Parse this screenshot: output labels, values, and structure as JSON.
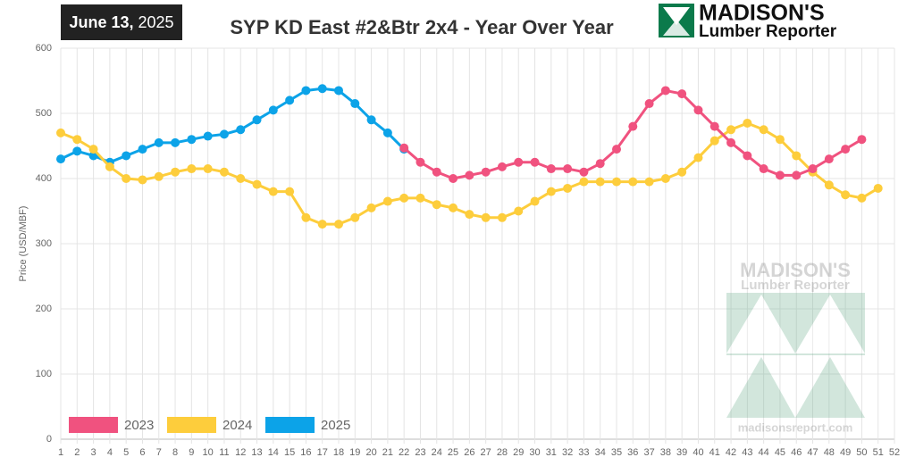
{
  "header": {
    "date_bold": "June 13,",
    "date_year": "2025"
  },
  "logo": {
    "name": "MADISON'S",
    "tagline": "Lumber Reporter"
  },
  "watermark": {
    "name": "MADISON'S",
    "tagline": "Lumber Reporter",
    "url": "madisonsreport.com"
  },
  "chart_data": {
    "type": "line",
    "title": "SYP KD East #2&Btr 2x4 - Year Over Year",
    "y_label": "Price  (USD/MBF)",
    "x": [
      1,
      2,
      3,
      4,
      5,
      6,
      7,
      8,
      9,
      10,
      11,
      12,
      13,
      14,
      15,
      16,
      17,
      18,
      19,
      20,
      21,
      22,
      23,
      24,
      25,
      26,
      27,
      28,
      29,
      30,
      31,
      32,
      33,
      34,
      35,
      36,
      37,
      38,
      39,
      40,
      41,
      42,
      43,
      44,
      45,
      46,
      47,
      48,
      49,
      50,
      51,
      52
    ],
    "xlim": [
      1,
      52
    ],
    "xticks": [
      1,
      2,
      3,
      4,
      5,
      6,
      7,
      8,
      9,
      10,
      11,
      12,
      13,
      14,
      15,
      16,
      17,
      18,
      19,
      20,
      21,
      22,
      23,
      24,
      25,
      26,
      27,
      28,
      29,
      30,
      31,
      32,
      33,
      34,
      35,
      36,
      37,
      38,
      39,
      40,
      41,
      42,
      43,
      44,
      45,
      46,
      47,
      48,
      49,
      50,
      51,
      52
    ],
    "ylim": [
      0,
      600
    ],
    "yticks": [
      0,
      100,
      200,
      300,
      400,
      500,
      600
    ],
    "grid": true,
    "legend": "bottom-left",
    "series": [
      {
        "name": "2023",
        "color": "#f0527f",
        "values": [
          null,
          null,
          null,
          null,
          null,
          null,
          null,
          null,
          null,
          null,
          null,
          null,
          null,
          null,
          null,
          null,
          null,
          null,
          null,
          null,
          null,
          447,
          425,
          410,
          400,
          405,
          410,
          418,
          425,
          425,
          415,
          415,
          410,
          423,
          445,
          480,
          515,
          535,
          530,
          505,
          480,
          455,
          435,
          415,
          405,
          405,
          415,
          430,
          445,
          460,
          null,
          null
        ]
      },
      {
        "name": "2024",
        "color": "#fdcd3c",
        "values": [
          470,
          460,
          445,
          418,
          400,
          398,
          403,
          410,
          415,
          415,
          410,
          400,
          391,
          380,
          380,
          340,
          330,
          330,
          340,
          355,
          365,
          370,
          370,
          360,
          355,
          345,
          340,
          340,
          350,
          365,
          380,
          385,
          395,
          395,
          395,
          395,
          395,
          400,
          410,
          432,
          458,
          475,
          485,
          475,
          460,
          435,
          410,
          390,
          375,
          370,
          385,
          null
        ]
      },
      {
        "name": "2025",
        "color": "#0ca3e8",
        "values": [
          430,
          442,
          435,
          425,
          435,
          445,
          455,
          455,
          460,
          465,
          468,
          475,
          490,
          505,
          520,
          535,
          538,
          535,
          515,
          490,
          470,
          445,
          null,
          null,
          null,
          null,
          null,
          null,
          null,
          null,
          null,
          null,
          null,
          null,
          null,
          null,
          null,
          null,
          null,
          null,
          null,
          null,
          null,
          null,
          null,
          null,
          null,
          null,
          null,
          null,
          null,
          null
        ]
      }
    ]
  }
}
